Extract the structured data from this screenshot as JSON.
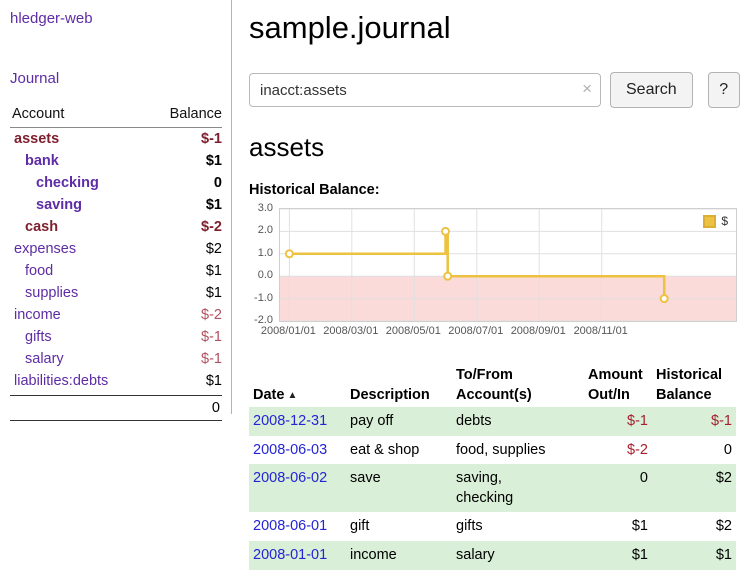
{
  "app": {
    "title": "hledger-web",
    "journal_link": "Journal"
  },
  "colors": {
    "link_purple": "#5e2ca5",
    "negative_dark_red": "#7e1f2d",
    "negative_pink": "#b25161",
    "table_negative_red": "#a8202e",
    "row_green": "#d9efd7",
    "series_yellow": "#edc240",
    "negative_region_pink": "#fadadа_FIX"
  },
  "sidebar": {
    "col_account": "Account",
    "col_balance": "Balance",
    "accounts": [
      {
        "name": "assets",
        "balance": "$-1"
      },
      {
        "name": "bank",
        "balance": "$1"
      },
      {
        "name": "checking",
        "balance": "0"
      },
      {
        "name": "saving",
        "balance": "$1"
      },
      {
        "name": "cash",
        "balance": "$-2"
      },
      {
        "name": "expenses",
        "balance": "$2"
      },
      {
        "name": "food",
        "balance": "$1"
      },
      {
        "name": "supplies",
        "balance": "$1"
      },
      {
        "name": "income",
        "balance": "$-2"
      },
      {
        "name": "gifts",
        "balance": "$-1"
      },
      {
        "name": "salary",
        "balance": "$-1"
      },
      {
        "name": "liabilities:debts",
        "balance": "$1"
      }
    ],
    "total": "0"
  },
  "main": {
    "title": "sample.journal",
    "search": {
      "value": "inacct:assets",
      "clear_icon": "×",
      "search_button": "Search",
      "help_button": "?"
    },
    "account_heading": "assets",
    "chart_title": "Historical Balance:"
  },
  "chart_data": {
    "type": "line",
    "title": "Historical Balance:",
    "legend_position": "top-right",
    "grid": true,
    "xlim": [
      -0.3,
      14.3
    ],
    "ylim": [
      -2,
      3
    ],
    "x_unit": "months since 2008-01-01",
    "yticks": [
      {
        "v": 3,
        "label": "3.0"
      },
      {
        "v": 2,
        "label": "2.0"
      },
      {
        "v": 1,
        "label": "1.0"
      },
      {
        "v": 0,
        "label": "0.0"
      },
      {
        "v": -1,
        "label": "-1.0"
      },
      {
        "v": -2,
        "label": "-2.0"
      }
    ],
    "xticks": [
      {
        "v": 0,
        "label": "2008/01/01"
      },
      {
        "v": 2,
        "label": "2008/03/01"
      },
      {
        "v": 4,
        "label": "2008/05/01"
      },
      {
        "v": 6,
        "label": "2008/07/01"
      },
      {
        "v": 8,
        "label": "2008/09/01"
      },
      {
        "v": 10,
        "label": "2008/11/01"
      }
    ],
    "negative_region_color": "#fbdada",
    "series": [
      {
        "name": "$",
        "color": "#edc240",
        "marker_fill": "#ffffff",
        "points": [
          [
            0,
            1
          ],
          [
            5,
            1
          ],
          [
            5,
            2
          ],
          [
            5.07,
            2
          ],
          [
            5.07,
            0
          ],
          [
            12,
            0
          ],
          [
            12,
            -1
          ]
        ],
        "markers": [
          [
            0,
            1
          ],
          [
            5,
            2
          ],
          [
            5.07,
            0
          ],
          [
            12,
            -1
          ]
        ],
        "balances_by_date": [
          {
            "date": "2008-01-01",
            "balance": 1
          },
          {
            "date": "2008-06-01",
            "balance": 2
          },
          {
            "date": "2008-06-02",
            "balance": 2
          },
          {
            "date": "2008-06-03",
            "balance": 0
          },
          {
            "date": "2008-12-31",
            "balance": -1
          }
        ]
      }
    ]
  },
  "register": {
    "headers": {
      "date": "Date",
      "sort_icon": "▲",
      "description": "Description",
      "account": "To/From\nAccount(s)",
      "amount": "Amount\nOut/In",
      "balance": "Historical\nBalance"
    },
    "rows": [
      {
        "date": "2008-12-31",
        "description": "pay off",
        "accounts": "debts",
        "amount": "$-1",
        "balance": "$-1"
      },
      {
        "date": "2008-06-03",
        "description": "eat & shop",
        "accounts": "food, supplies",
        "amount": "$-2",
        "balance": "0"
      },
      {
        "date": "2008-06-02",
        "description": "save",
        "accounts": "saving,\nchecking",
        "amount": "0",
        "balance": "$2"
      },
      {
        "date": "2008-06-01",
        "description": "gift",
        "accounts": "gifts",
        "amount": "$1",
        "balance": "$2"
      },
      {
        "date": "2008-01-01",
        "description": "income",
        "accounts": "salary",
        "amount": "$1",
        "balance": "$1"
      }
    ]
  }
}
